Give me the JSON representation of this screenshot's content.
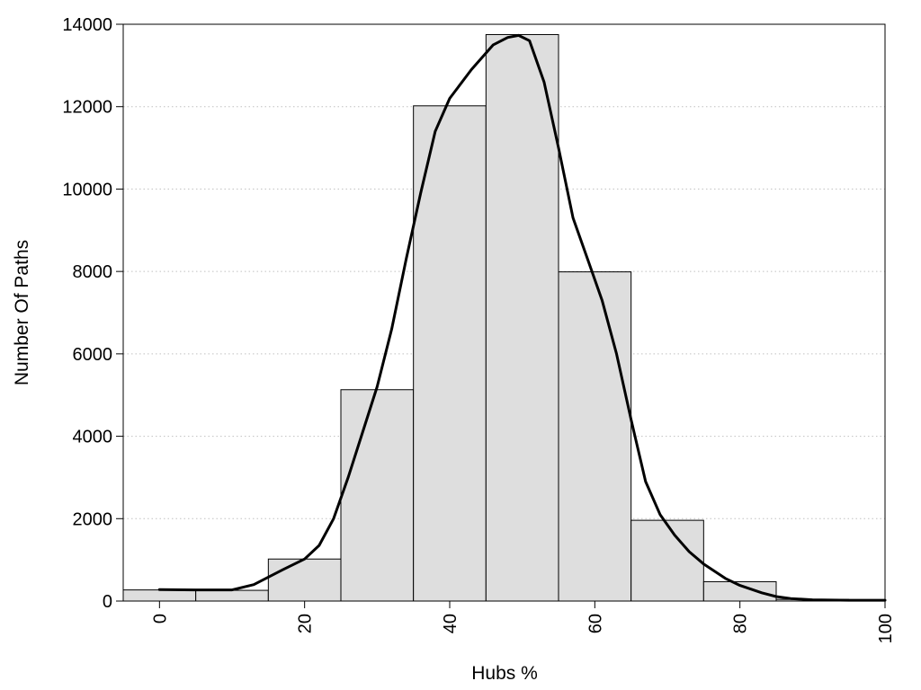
{
  "chart_data": {
    "type": "bar",
    "title": "",
    "xlabel": "Hubs %",
    "ylabel": "Number Of Paths",
    "xlim": [
      -5,
      100
    ],
    "ylim": [
      0,
      14000
    ],
    "x_ticks": [
      "0",
      "20",
      "40",
      "60",
      "80",
      "100"
    ],
    "y_ticks": [
      "0",
      "2000",
      "4000",
      "6000",
      "8000",
      "10000",
      "12000",
      "14000"
    ],
    "grid": "horizontal dotted",
    "bins": [
      {
        "from": -5,
        "to": 5,
        "value": 270
      },
      {
        "from": 5,
        "to": 15,
        "value": 260
      },
      {
        "from": 15,
        "to": 25,
        "value": 1020
      },
      {
        "from": 25,
        "to": 35,
        "value": 5130
      },
      {
        "from": 35,
        "to": 45,
        "value": 12020
      },
      {
        "from": 45,
        "to": 55,
        "value": 13750
      },
      {
        "from": 55,
        "to": 65,
        "value": 7990
      },
      {
        "from": 65,
        "to": 75,
        "value": 1960
      },
      {
        "from": 75,
        "to": 85,
        "value": 470
      },
      {
        "from": 85,
        "to": 95,
        "value": 40
      }
    ],
    "density_curve": {
      "x": [
        0,
        5,
        10,
        13,
        17,
        20,
        22,
        24,
        26,
        28,
        30,
        32,
        34,
        36,
        38,
        40,
        43,
        46,
        48,
        49.5,
        51,
        53,
        55,
        57,
        59,
        61,
        63,
        65,
        67,
        69,
        71,
        73,
        75,
        78,
        80,
        83,
        85,
        87,
        90,
        95,
        100
      ],
      "y": [
        280,
        270,
        270,
        400,
        760,
        1020,
        1350,
        2000,
        3000,
        4100,
        5200,
        6600,
        8300,
        9900,
        11400,
        12200,
        12900,
        13500,
        13680,
        13730,
        13600,
        12600,
        11000,
        9300,
        8300,
        7300,
        6000,
        4400,
        2900,
        2100,
        1600,
        1200,
        900,
        550,
        380,
        200,
        110,
        60,
        30,
        20,
        20
      ]
    },
    "colors": {
      "bar_fill": "#dedede",
      "bar_stroke": "#000000",
      "curve": "#000000",
      "grid": "#c0c0c0"
    }
  }
}
